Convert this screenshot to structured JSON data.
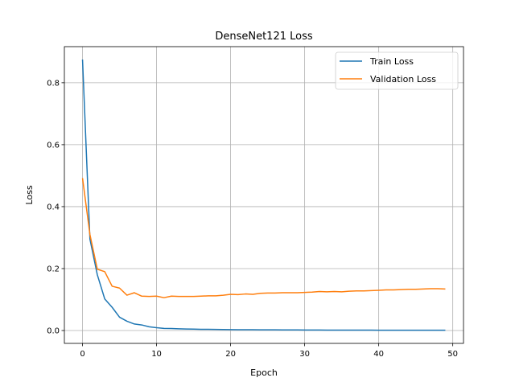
{
  "chart_data": {
    "type": "line",
    "title": "DenseNet121 Loss",
    "xlabel": "Epoch",
    "ylabel": "Loss",
    "xlim": [
      -2.45,
      51.45
    ],
    "ylim": [
      -0.0415,
      0.9165
    ],
    "xticks": [
      0,
      10,
      20,
      30,
      40,
      50
    ],
    "yticks": [
      0.0,
      0.2,
      0.4,
      0.6,
      0.8
    ],
    "ytick_labels": [
      "0.0",
      "0.2",
      "0.4",
      "0.6",
      "0.8"
    ],
    "grid": true,
    "legend_position": "top-right",
    "x": [
      0,
      1,
      2,
      3,
      4,
      5,
      6,
      7,
      8,
      9,
      10,
      11,
      12,
      13,
      14,
      15,
      16,
      17,
      18,
      19,
      20,
      21,
      22,
      23,
      24,
      25,
      26,
      27,
      28,
      29,
      30,
      31,
      32,
      33,
      34,
      35,
      36,
      37,
      38,
      39,
      40,
      41,
      42,
      43,
      44,
      45,
      46,
      47,
      48,
      49
    ],
    "series": [
      {
        "name": "Train Loss",
        "color": "#1f77b4",
        "values": [
          0.875,
          0.295,
          0.18,
          0.102,
          0.075,
          0.043,
          0.03,
          0.021,
          0.018,
          0.012,
          0.009,
          0.007,
          0.0065,
          0.0055,
          0.005,
          0.0045,
          0.004,
          0.0038,
          0.0035,
          0.0032,
          0.003,
          0.0028,
          0.0026,
          0.0025,
          0.0024,
          0.0023,
          0.0022,
          0.0021,
          0.002,
          0.0019,
          0.0018,
          0.0017,
          0.0016,
          0.0015,
          0.0014,
          0.0014,
          0.0013,
          0.0013,
          0.0012,
          0.0012,
          0.0011,
          0.0011,
          0.0011,
          0.001,
          0.001,
          0.001,
          0.001,
          0.0009,
          0.0009,
          0.0009
        ]
      },
      {
        "name": "Validation Loss",
        "color": "#ff7f0e",
        "values": [
          0.492,
          0.31,
          0.198,
          0.19,
          0.143,
          0.137,
          0.114,
          0.122,
          0.111,
          0.11,
          0.111,
          0.106,
          0.111,
          0.11,
          0.11,
          0.11,
          0.111,
          0.112,
          0.112,
          0.114,
          0.117,
          0.116,
          0.118,
          0.117,
          0.12,
          0.121,
          0.121,
          0.122,
          0.122,
          0.122,
          0.123,
          0.124,
          0.126,
          0.125,
          0.126,
          0.125,
          0.127,
          0.128,
          0.128,
          0.129,
          0.13,
          0.131,
          0.131,
          0.132,
          0.133,
          0.133,
          0.134,
          0.135,
          0.135,
          0.134
        ]
      }
    ]
  }
}
